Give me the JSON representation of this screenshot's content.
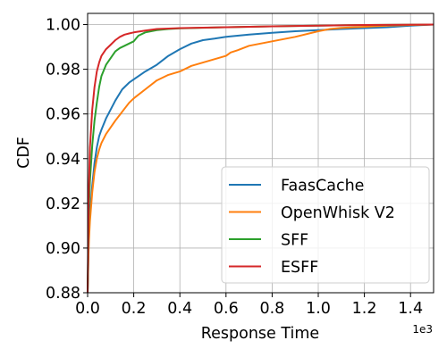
{
  "chart_data": {
    "type": "line",
    "title": "",
    "xlabel": "Response Time",
    "ylabel": "CDF",
    "x_offset_label": "1e3",
    "xlim": [
      0,
      1.5
    ],
    "ylim": [
      0.88,
      1.005
    ],
    "x_ticks": [
      0,
      0.2,
      0.4,
      0.6,
      0.8,
      1.0,
      1.2,
      1.4
    ],
    "x_tick_labels": [
      "0.0",
      "0.2",
      "0.4",
      "0.6",
      "0.8",
      "1.0",
      "1.2",
      "1.4"
    ],
    "y_ticks": [
      0.88,
      0.9,
      0.92,
      0.94,
      0.96,
      0.98,
      1.0
    ],
    "y_tick_labels": [
      "0.88",
      "0.90",
      "0.92",
      "0.94",
      "0.96",
      "0.98",
      "1.00"
    ],
    "grid": true,
    "legend_position": "lower-right",
    "series": [
      {
        "name": "FaasCache",
        "color": "#1f77b4",
        "x": [
          0.0,
          0.005,
          0.01,
          0.02,
          0.03,
          0.04,
          0.05,
          0.06,
          0.08,
          0.1,
          0.12,
          0.15,
          0.18,
          0.2,
          0.25,
          0.3,
          0.35,
          0.4,
          0.45,
          0.5,
          0.55,
          0.6,
          0.65,
          0.7,
          0.8,
          0.9,
          1.0,
          1.1,
          1.2,
          1.3,
          1.4,
          1.5
        ],
        "y": [
          0.88,
          0.905,
          0.915,
          0.928,
          0.938,
          0.945,
          0.95,
          0.953,
          0.958,
          0.962,
          0.966,
          0.971,
          0.974,
          0.9755,
          0.979,
          0.982,
          0.986,
          0.989,
          0.9915,
          0.993,
          0.9937,
          0.9945,
          0.995,
          0.9955,
          0.9963,
          0.997,
          0.9975,
          0.998,
          0.9984,
          0.9988,
          0.9995,
          1.0
        ]
      },
      {
        "name": "OpenWhisk V2",
        "color": "#ff7f0e",
        "x": [
          0.0,
          0.005,
          0.01,
          0.02,
          0.03,
          0.04,
          0.05,
          0.06,
          0.08,
          0.1,
          0.12,
          0.15,
          0.18,
          0.2,
          0.25,
          0.3,
          0.35,
          0.4,
          0.45,
          0.5,
          0.55,
          0.6,
          0.62,
          0.65,
          0.7,
          0.8,
          0.9,
          1.0,
          1.05,
          1.1,
          1.2,
          1.3,
          1.4,
          1.5
        ],
        "y": [
          0.88,
          0.902,
          0.912,
          0.925,
          0.934,
          0.94,
          0.944,
          0.947,
          0.951,
          0.954,
          0.957,
          0.961,
          0.965,
          0.967,
          0.971,
          0.975,
          0.9775,
          0.979,
          0.9815,
          0.983,
          0.9845,
          0.986,
          0.9875,
          0.9885,
          0.9905,
          0.9925,
          0.9945,
          0.997,
          0.998,
          0.9985,
          0.999,
          0.9995,
          0.9998,
          1.0
        ]
      },
      {
        "name": "SFF",
        "color": "#2ca02c",
        "x": [
          0.0,
          0.005,
          0.01,
          0.02,
          0.03,
          0.04,
          0.05,
          0.06,
          0.08,
          0.1,
          0.12,
          0.14,
          0.16,
          0.18,
          0.2,
          0.22,
          0.25,
          0.3,
          0.35,
          0.4,
          0.6,
          0.8,
          1.0,
          1.2,
          1.5
        ],
        "y": [
          0.88,
          0.915,
          0.93,
          0.946,
          0.957,
          0.965,
          0.972,
          0.977,
          0.982,
          0.985,
          0.988,
          0.9895,
          0.9905,
          0.9915,
          0.9925,
          0.995,
          0.9965,
          0.9975,
          0.998,
          0.9983,
          0.9988,
          0.9992,
          0.9995,
          0.9998,
          1.0
        ]
      },
      {
        "name": "ESFF",
        "color": "#d62728",
        "x": [
          0.0,
          0.005,
          0.01,
          0.02,
          0.03,
          0.04,
          0.05,
          0.06,
          0.08,
          0.1,
          0.12,
          0.14,
          0.16,
          0.18,
          0.2,
          0.25,
          0.3,
          0.4,
          0.6,
          0.8,
          1.0,
          1.2,
          1.5
        ],
        "y": [
          0.88,
          0.925,
          0.945,
          0.962,
          0.972,
          0.979,
          0.983,
          0.986,
          0.989,
          0.991,
          0.993,
          0.9945,
          0.9955,
          0.996,
          0.9965,
          0.9973,
          0.998,
          0.9984,
          0.9988,
          0.9992,
          0.9995,
          0.9998,
          1.0
        ]
      }
    ]
  }
}
